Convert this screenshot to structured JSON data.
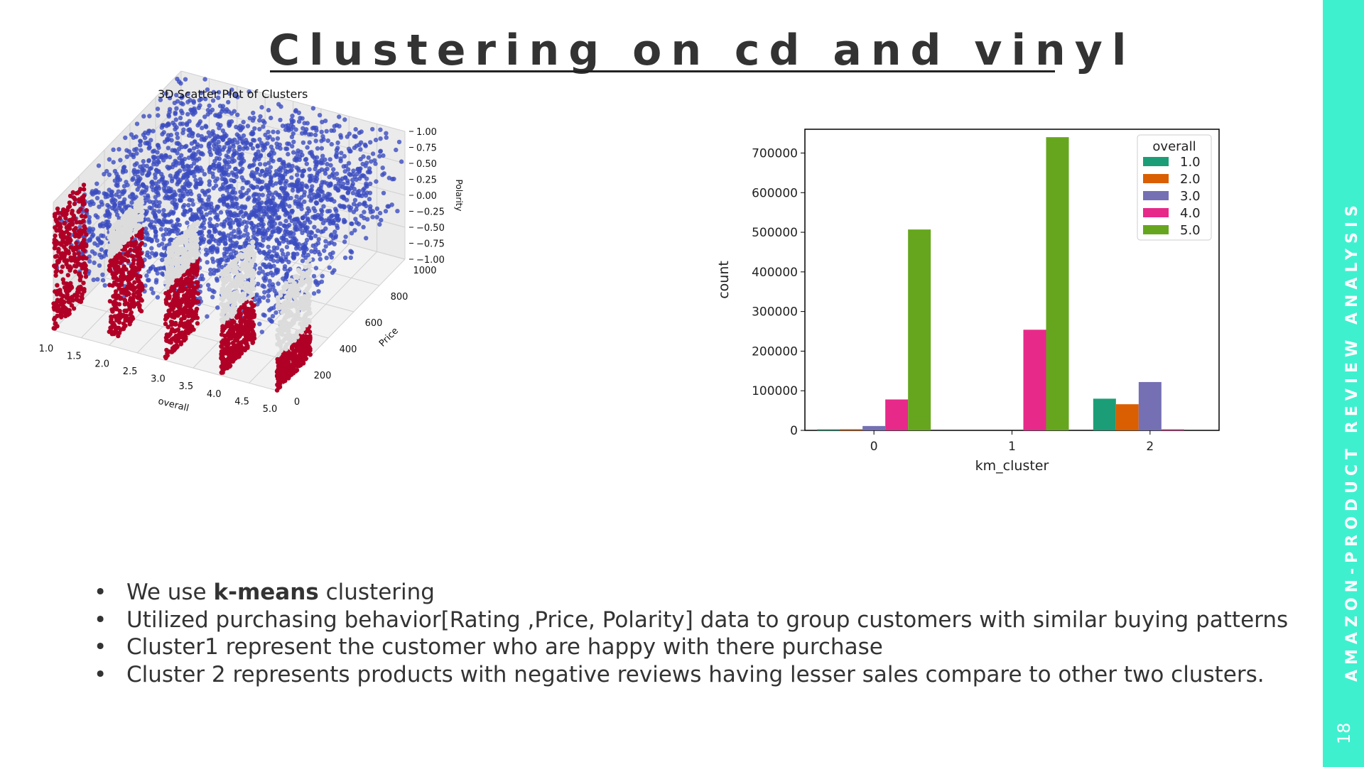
{
  "slide": {
    "title": "Clustering on cd and vinyl",
    "side_label": "AMAZON-PRODUCT REVIEW ANALYSIS",
    "page_number": "18",
    "accent_color": "#3ff0cf"
  },
  "bullets": [
    {
      "prefix": "We use ",
      "bold": "k-means",
      "suffix": " clustering"
    },
    {
      "prefix": "Utilized purchasing behavior[Rating ,Price, Polarity] data to group customers with similar buying patterns",
      "bold": "",
      "suffix": ""
    },
    {
      "prefix": "Cluster1 represent the customer who are happy with there purchase",
      "bold": "",
      "suffix": ""
    },
    {
      "prefix": "Cluster 2 represents products with negative reviews having lesser sales compare to other two clusters.",
      "bold": "",
      "suffix": ""
    }
  ],
  "chart_data": [
    {
      "type": "scatter",
      "title": "3D Scatter Plot of Clusters",
      "xlabel": "overall",
      "ylabel": "Price",
      "zlabel": "Polarity",
      "x_ticks": [
        "1.0",
        "1.5",
        "2.0",
        "2.5",
        "3.0",
        "3.5",
        "4.0",
        "4.5",
        "5.0"
      ],
      "y_ticks": [
        "0",
        "200",
        "400",
        "600",
        "800",
        "1000"
      ],
      "z_ticks": [
        "1.00",
        "0.75",
        "0.50",
        "0.25",
        "0.00",
        "−0.25",
        "−0.50",
        "−0.75",
        "−1.00"
      ],
      "xlim": [
        1.0,
        5.0
      ],
      "ylim": [
        0,
        1000
      ],
      "zlim": [
        -1.0,
        1.0
      ],
      "grid": true,
      "series": [
        {
          "color": "#b10026"
        },
        {
          "color": "#dcdcdc"
        },
        {
          "color": "#3b4cc0"
        }
      ]
    },
    {
      "type": "bar",
      "xlabel": "km_cluster",
      "ylabel": "count",
      "categories": [
        "0",
        "1",
        "2"
      ],
      "ylim": [
        0,
        760000
      ],
      "y_ticks": [
        "0",
        "100000",
        "200000",
        "300000",
        "400000",
        "500000",
        "600000",
        "700000"
      ],
      "y_tick_values": [
        0,
        100000,
        200000,
        300000,
        400000,
        500000,
        600000,
        700000
      ],
      "legend": {
        "title": "overall",
        "position": "top-right"
      },
      "series": [
        {
          "name": "1.0",
          "color": "#1b9e77",
          "values": [
            2000,
            0,
            80000
          ]
        },
        {
          "name": "2.0",
          "color": "#d95f02",
          "values": [
            3000,
            0,
            66000
          ]
        },
        {
          "name": "3.0",
          "color": "#7570b3",
          "values": [
            11000,
            0,
            122000
          ]
        },
        {
          "name": "4.0",
          "color": "#e7298a",
          "values": [
            78000,
            254000,
            2000
          ]
        },
        {
          "name": "5.0",
          "color": "#66a61e",
          "values": [
            507000,
            740000,
            0
          ]
        }
      ]
    }
  ]
}
